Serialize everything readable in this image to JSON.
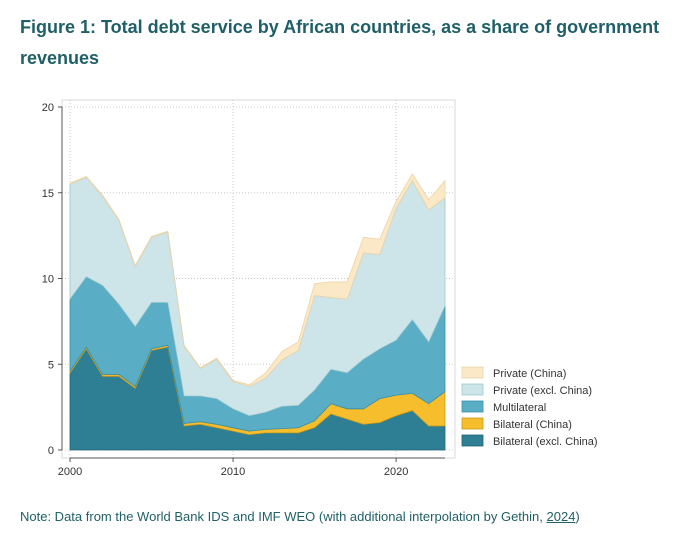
{
  "title": "Figure 1: Total debt service by African countries, as a share of government revenues",
  "note": {
    "text": "Note: Data from the World Bank IDS and IMF WEO (with additional interpolation by Gethin, ",
    "link": "2024",
    "suffix": ")"
  },
  "chart_data": {
    "type": "area",
    "stacked": true,
    "x": [
      2000,
      2001,
      2002,
      2003,
      2004,
      2005,
      2006,
      2007,
      2008,
      2009,
      2010,
      2011,
      2012,
      2013,
      2014,
      2015,
      2016,
      2017,
      2018,
      2019,
      2020,
      2021,
      2022,
      2023
    ],
    "xticks": [
      "2000",
      "2010",
      "2020"
    ],
    "yticks": [
      "0",
      "5",
      "10",
      "15",
      "20"
    ],
    "ylim": [
      0,
      20
    ],
    "xlim": [
      2000,
      2023.5
    ],
    "grid": true,
    "legend_position": "right",
    "series": [
      {
        "name": "Bilateral (excl. China)",
        "color": "#2e7f93",
        "edge": "#1f6677",
        "values": [
          4.5,
          5.9,
          4.3,
          4.3,
          3.6,
          5.8,
          6.0,
          1.4,
          1.5,
          1.3,
          1.1,
          0.9,
          1.0,
          1.0,
          1.0,
          1.3,
          2.1,
          1.8,
          1.5,
          1.6,
          2.0,
          2.3,
          1.4,
          1.4
        ]
      },
      {
        "name": "Bilateral (China)",
        "color": "#f6bd2d",
        "edge": "#c89a1f",
        "values": [
          0.1,
          0.1,
          0.1,
          0.1,
          0.1,
          0.1,
          0.1,
          0.15,
          0.15,
          0.2,
          0.2,
          0.2,
          0.2,
          0.25,
          0.3,
          0.4,
          0.6,
          0.6,
          0.9,
          1.4,
          1.2,
          1.0,
          1.3,
          2.0
        ]
      },
      {
        "name": "Multilateral",
        "color": "#59aec6",
        "edge": "#3a8fa8",
        "values": [
          4.2,
          4.1,
          5.2,
          4.1,
          3.5,
          2.7,
          2.5,
          1.6,
          1.5,
          1.5,
          1.1,
          0.9,
          1.0,
          1.3,
          1.3,
          1.8,
          2.0,
          2.1,
          2.9,
          2.9,
          3.2,
          4.3,
          3.6,
          5.0
        ]
      },
      {
        "name": "Private (excl. China)",
        "color": "#cde5e9",
        "edge": "#9fc7ce",
        "values": [
          6.7,
          5.8,
          5.2,
          4.9,
          3.5,
          3.8,
          4.1,
          2.9,
          1.6,
          2.3,
          1.6,
          1.7,
          2.0,
          2.7,
          3.2,
          5.5,
          4.2,
          4.3,
          6.2,
          5.5,
          7.7,
          8.1,
          7.7,
          6.3
        ]
      },
      {
        "name": "Private (China)",
        "color": "#fbe8c6",
        "edge": "#ead3a8",
        "values": [
          0.05,
          0.05,
          0.05,
          0.05,
          0.05,
          0.05,
          0.05,
          0.05,
          0.05,
          0.05,
          0.05,
          0.1,
          0.3,
          0.5,
          0.5,
          0.7,
          0.9,
          1.0,
          0.9,
          0.9,
          0.4,
          0.4,
          0.6,
          1.0
        ]
      }
    ],
    "legend_order": [
      "Private (China)",
      "Private (excl. China)",
      "Multilateral",
      "Bilateral (China)",
      "Bilateral (excl. China)"
    ]
  }
}
